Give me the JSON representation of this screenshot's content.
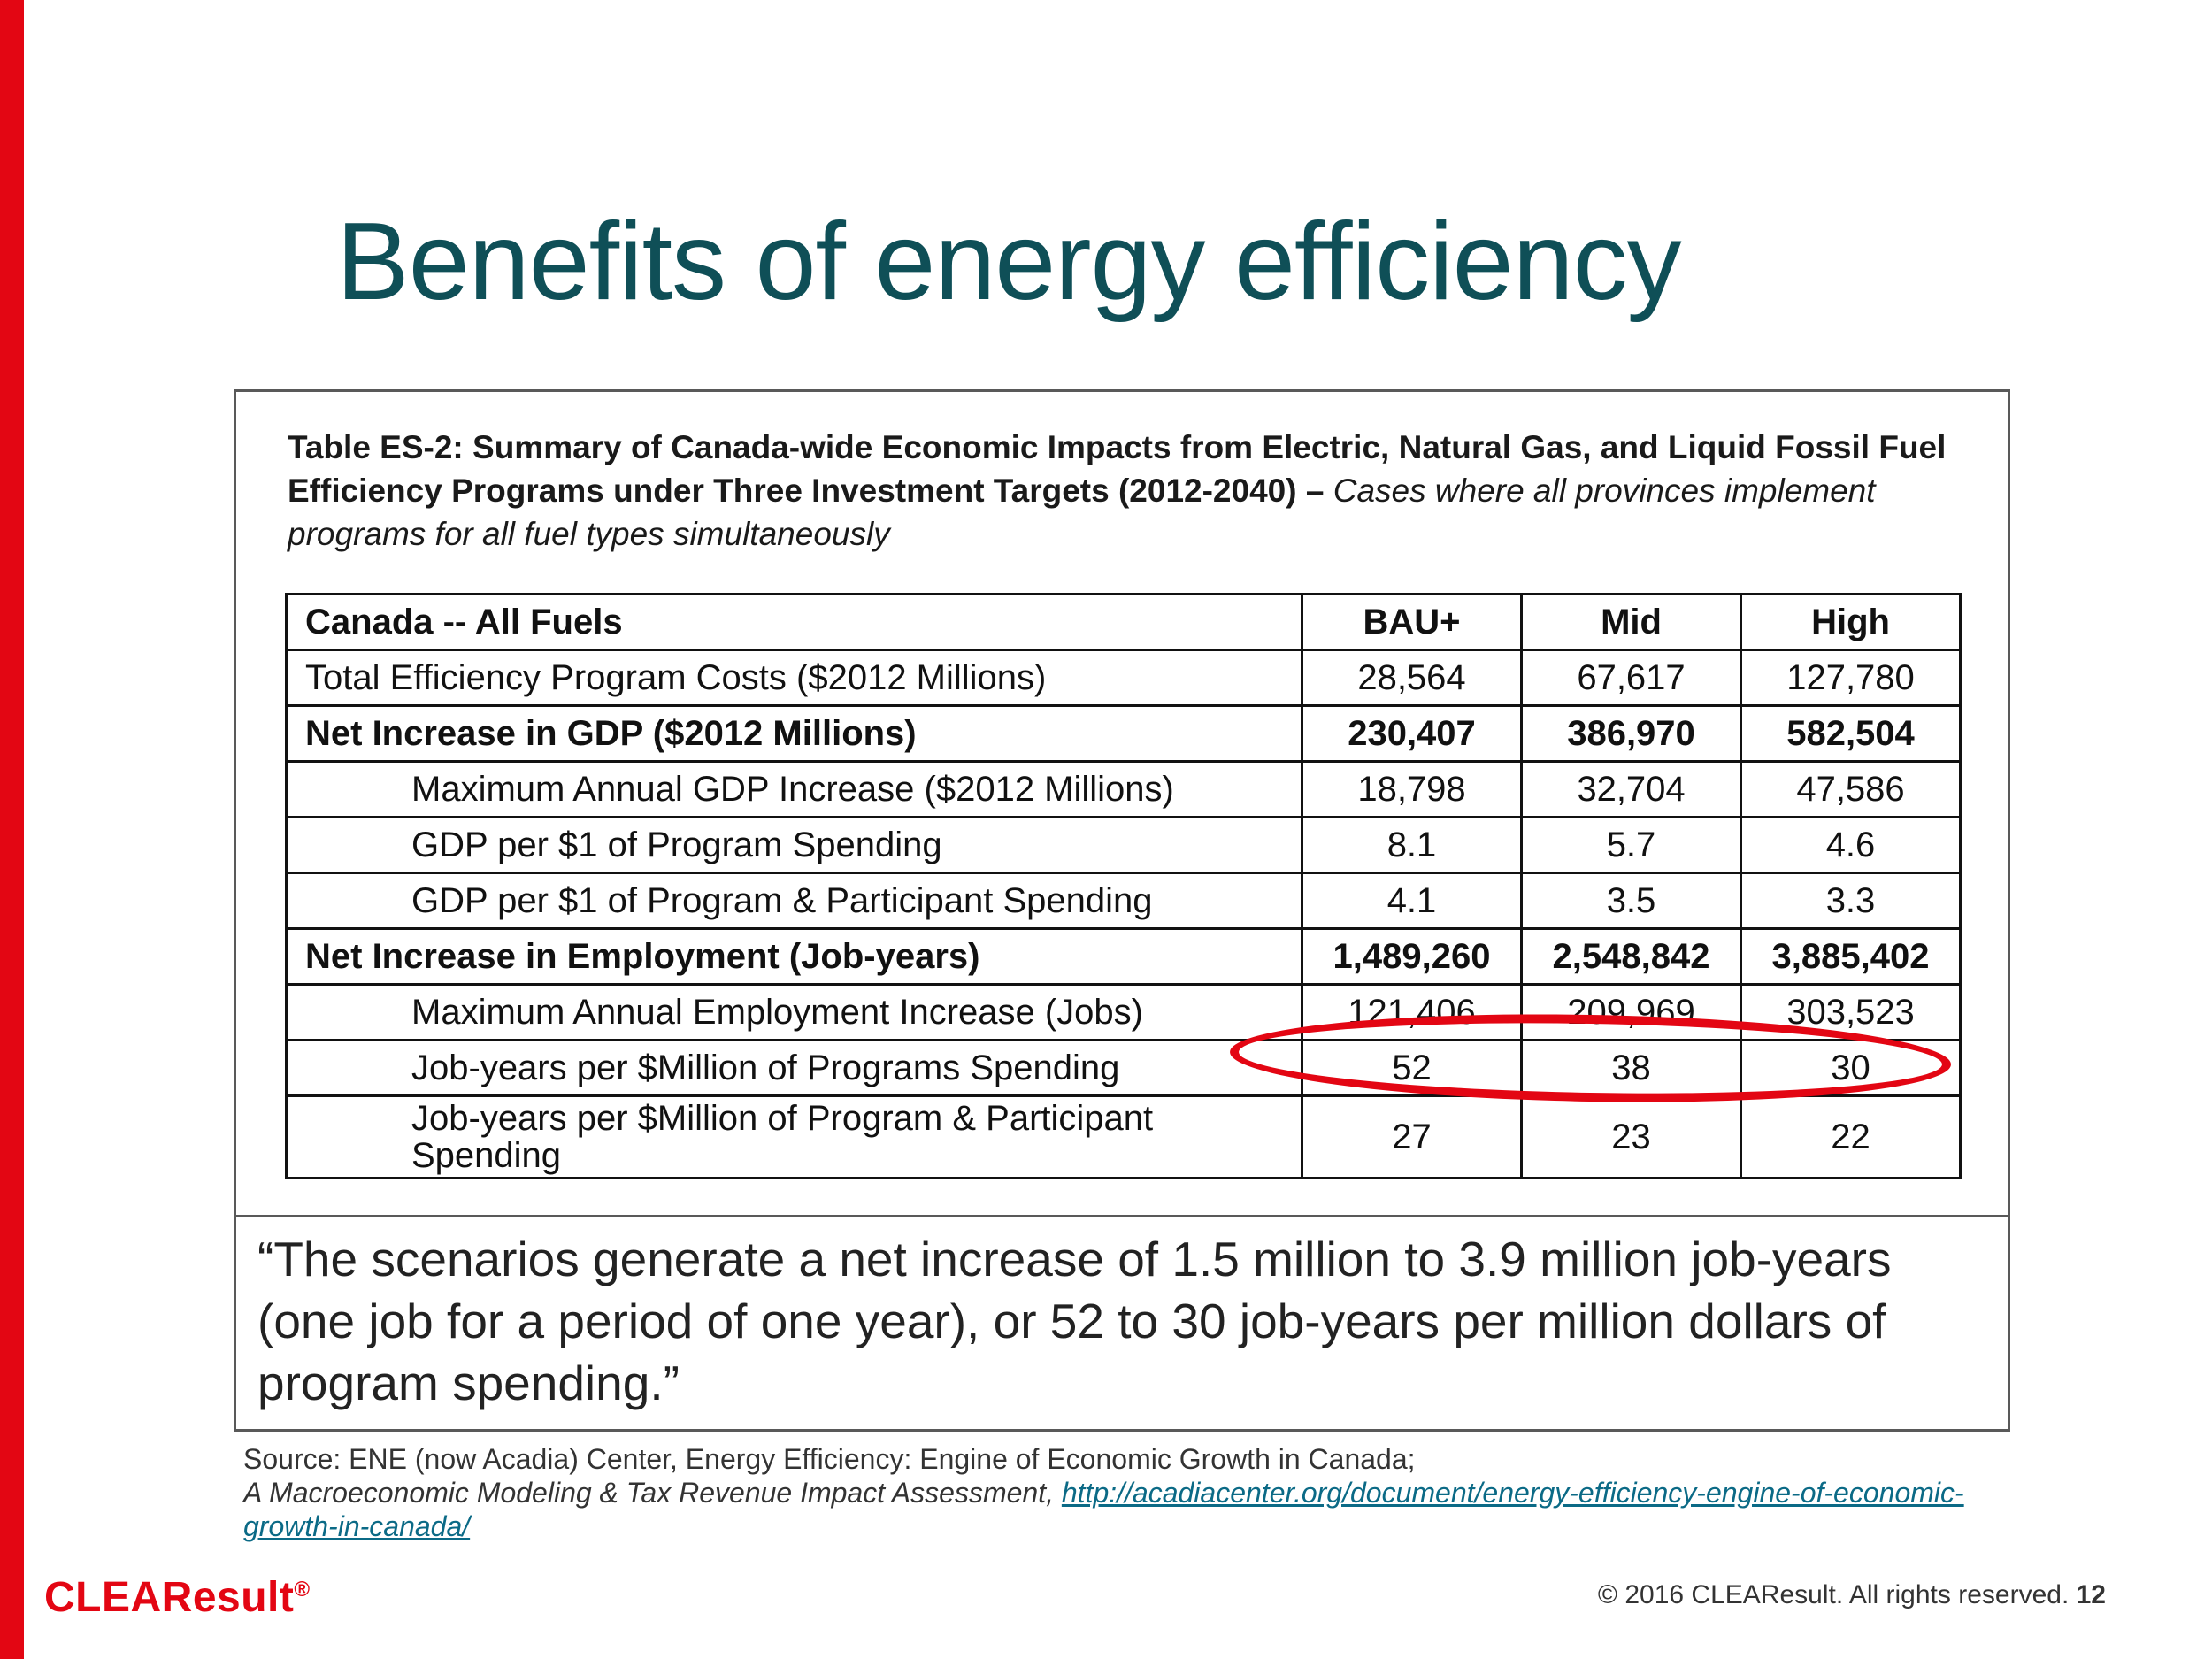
{
  "slide": {
    "title": "Benefits of energy efficiency",
    "page_number": "12",
    "copyright": "© 2016 CLEAResult. All rights reserved.",
    "logo_text": "CLEAResult",
    "logo_mark": "®",
    "accent_color": "#e30613",
    "title_color": "#0f4f57"
  },
  "table": {
    "caption_bold": "Table ES-2: Summary of Canada-wide Economic Impacts from Electric, Natural Gas, and Liquid Fossil Fuel Efficiency Programs under Three Investment Targets (2012-2040) –",
    "caption_italic": "Cases where all provinces implement programs for all fuel types simultaneously",
    "headers": [
      "Canada -- All Fuels",
      "BAU+",
      "Mid",
      "High"
    ],
    "rows": [
      {
        "label": "Total Efficiency Program Costs ($2012 Millions)",
        "values": [
          "28,564",
          "67,617",
          "127,780"
        ],
        "bold": false,
        "indent": false
      },
      {
        "label": "Net Increase in GDP ($2012 Millions)",
        "values": [
          "230,407",
          "386,970",
          "582,504"
        ],
        "bold": true,
        "indent": false
      },
      {
        "label": "Maximum Annual GDP Increase ($2012 Millions)",
        "values": [
          "18,798",
          "32,704",
          "47,586"
        ],
        "bold": false,
        "indent": true
      },
      {
        "label": "GDP per $1 of Program Spending",
        "values": [
          "8.1",
          "5.7",
          "4.6"
        ],
        "bold": false,
        "indent": true
      },
      {
        "label": "GDP per $1 of Program & Participant Spending",
        "values": [
          "4.1",
          "3.5",
          "3.3"
        ],
        "bold": false,
        "indent": true
      },
      {
        "label": "Net Increase in Employment (Job-years)",
        "values": [
          "1,489,260",
          "2,548,842",
          "3,885,402"
        ],
        "bold": true,
        "indent": false
      },
      {
        "label": "Maximum Annual Employment Increase (Jobs)",
        "values": [
          "121,406",
          "209,969",
          "303,523"
        ],
        "bold": false,
        "indent": true
      },
      {
        "label": "Job-years per $Million of Programs Spending",
        "values": [
          "52",
          "38",
          "30"
        ],
        "bold": false,
        "indent": true
      },
      {
        "label": "Job-years per $Million of Program & Participant Spending",
        "values": [
          "27",
          "23",
          "22"
        ],
        "bold": false,
        "indent": true
      }
    ]
  },
  "quote": "“The scenarios generate a net increase of 1.5 million to 3.9 million job-years (one job for a period of one year), or 52 to 30 job-years per million dollars of program spending.”",
  "source": {
    "line1": "Source: ENE (now Acadia) Center, Energy Efficiency: Engine of Economic Growth in Canada;",
    "line2_italic": "A Macroeconomic Modeling & Tax Revenue Impact Assessment,",
    "link": "http://acadiacenter.org/document/energy-efficiency-engine-of-economic-growth-in-canada/"
  }
}
